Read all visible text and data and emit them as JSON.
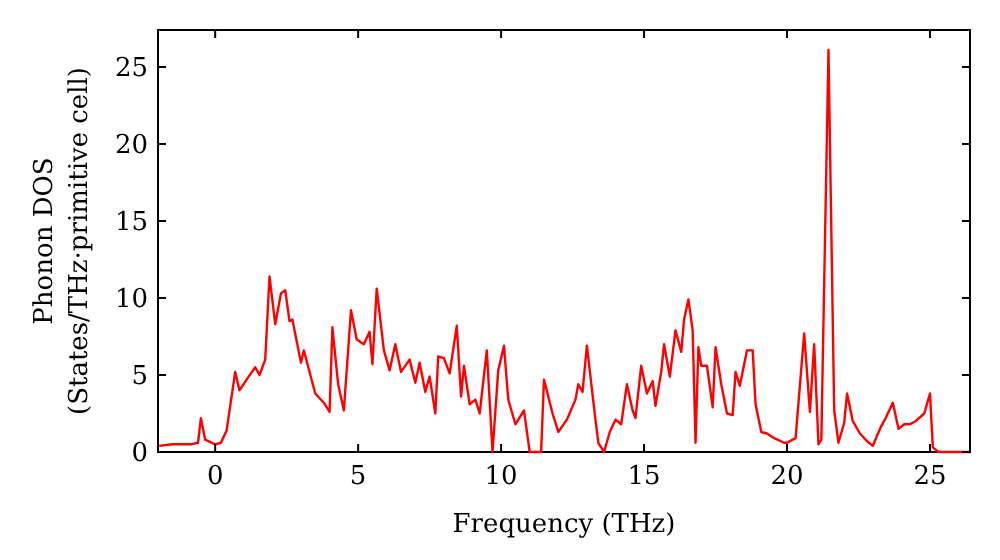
{
  "chart_data": {
    "type": "line",
    "xlabel": "Frequency (THz)",
    "ylabel": "Phonon DOS\n(States/THz·primitive cell)",
    "xlim": [
      -2,
      26.4
    ],
    "ylim": [
      0,
      27.4
    ],
    "xticks": [
      0,
      5,
      10,
      15,
      20,
      25
    ],
    "yticks": [
      0,
      5,
      10,
      15,
      20,
      25
    ],
    "grid": false,
    "marker": "none",
    "line_style": "solid",
    "series": [
      {
        "color": "#ff0000",
        "x": [
          -1.96,
          -1.5,
          -1.2,
          -0.85,
          -0.6,
          -0.5,
          -0.35,
          0,
          0.2,
          0.4,
          0.7,
          0.85,
          1.1,
          1.4,
          1.55,
          1.75,
          1.9,
          2.1,
          2.3,
          2.45,
          2.6,
          2.7,
          3.0,
          3.1,
          3.5,
          3.8,
          4.0,
          4.1,
          4.3,
          4.5,
          4.75,
          4.95,
          5.2,
          5.4,
          5.5,
          5.65,
          5.9,
          6.1,
          6.3,
          6.5,
          6.8,
          7.0,
          7.15,
          7.35,
          7.5,
          7.7,
          7.8,
          8.0,
          8.2,
          8.45,
          8.6,
          8.7,
          8.9,
          9.1,
          9.25,
          9.5,
          9.7,
          9.9,
          10.1,
          10.25,
          10.5,
          10.8,
          11.0,
          11.4,
          11.5,
          11.8,
          12.0,
          12.3,
          12.6,
          12.7,
          12.85,
          13.0,
          13.3,
          13.4,
          13.6,
          13.8,
          14.0,
          14.2,
          14.4,
          14.6,
          14.7,
          14.9,
          15.1,
          15.3,
          15.4,
          15.6,
          15.7,
          15.9,
          16.1,
          16.3,
          16.4,
          16.55,
          16.7,
          16.8,
          16.9,
          17.0,
          17.2,
          17.4,
          17.5,
          17.7,
          17.9,
          18.1,
          18.2,
          18.35,
          18.6,
          18.8,
          18.9,
          19.1,
          19.3,
          19.55,
          19.9,
          20.0,
          20.3,
          20.6,
          20.8,
          20.95,
          21.1,
          21.2,
          21.45,
          21.65,
          21.8,
          22.0,
          22.1,
          22.3,
          22.55,
          22.8,
          23.0,
          23.3,
          23.45,
          23.7,
          23.9,
          24.1,
          24.3,
          24.5,
          24.8,
          25.0,
          25.1,
          25.3,
          26.4
        ],
        "values": [
          0.4,
          0.5,
          0.5,
          0.5,
          0.6,
          2.2,
          0.8,
          0.5,
          0.6,
          1.4,
          5.2,
          4.0,
          4.7,
          5.5,
          5.0,
          6.0,
          11.4,
          8.3,
          10.3,
          10.5,
          8.5,
          8.6,
          5.8,
          6.6,
          3.8,
          3.2,
          2.6,
          8.1,
          4.4,
          2.7,
          9.2,
          7.3,
          7.0,
          7.8,
          5.7,
          10.6,
          6.6,
          5.3,
          7.0,
          5.2,
          6.0,
          4.5,
          5.8,
          3.9,
          4.9,
          2.5,
          6.2,
          6.1,
          5.1,
          8.2,
          3.6,
          5.6,
          3.1,
          3.4,
          2.5,
          6.6,
          0,
          5.3,
          6.9,
          3.4,
          1.8,
          2.7,
          0,
          0,
          4.7,
          2.5,
          1.3,
          2.1,
          3.4,
          4.4,
          3.9,
          6.9,
          2.1,
          0.6,
          0,
          1.3,
          2.1,
          1.8,
          4.4,
          2.7,
          2.2,
          5.6,
          3.8,
          4.6,
          3.0,
          5.2,
          7.0,
          4.9,
          7.9,
          6.5,
          8.6,
          9.9,
          7.9,
          0.6,
          6.8,
          5.6,
          5.6,
          2.9,
          6.8,
          4.4,
          2.5,
          2.4,
          5.2,
          4.3,
          6.6,
          6.6,
          3.1,
          1.3,
          1.2,
          0.9,
          0.6,
          0.6,
          0.9,
          7.7,
          2.6,
          7.0,
          0.5,
          0.8,
          26.1,
          2.7,
          0.6,
          1.9,
          3.8,
          2.0,
          1.2,
          0.7,
          0.4,
          1.7,
          2.2,
          3.2,
          1.5,
          1.8,
          1.8,
          2.0,
          2.5,
          3.8,
          0.3,
          0,
          0
        ]
      }
    ]
  }
}
